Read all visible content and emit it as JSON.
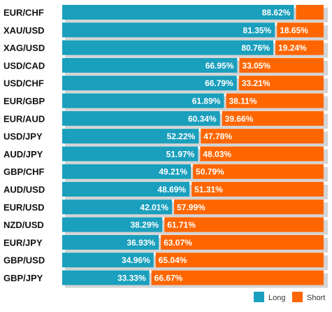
{
  "chart_data": {
    "type": "bar",
    "stacked": true,
    "orientation": "horizontal",
    "categories": [
      "EUR/CHF",
      "XAU/USD",
      "XAG/USD",
      "USD/CAD",
      "USD/CHF",
      "EUR/GBP",
      "EUR/AUD",
      "USD/JPY",
      "AUD/JPY",
      "GBP/CHF",
      "AUD/USD",
      "EUR/USD",
      "NZD/USD",
      "EUR/JPY",
      "GBP/USD",
      "GBP/JPY"
    ],
    "series": [
      {
        "name": "Long",
        "color": "#1a9fbd",
        "values": [
          88.62,
          81.35,
          80.76,
          66.95,
          66.79,
          61.89,
          60.34,
          52.22,
          51.97,
          49.21,
          48.69,
          42.01,
          38.29,
          36.93,
          34.96,
          33.33
        ],
        "labels": [
          "88.62%",
          "81.35%",
          "80.76%",
          "66.95%",
          "66.79%",
          "61.89%",
          "60.34%",
          "52.22%",
          "51.97%",
          "49.21%",
          "48.69%",
          "42.01%",
          "38.29%",
          "36.93%",
          "34.96%",
          "33.33%"
        ]
      },
      {
        "name": "Short",
        "color": "#ff6600",
        "values": [
          11.38,
          18.65,
          19.24,
          33.05,
          33.21,
          38.11,
          39.66,
          47.78,
          48.03,
          50.79,
          51.31,
          57.99,
          61.71,
          63.07,
          65.04,
          66.67
        ],
        "labels": [
          "",
          "18.65%",
          "19.24%",
          "33.05%",
          "33.21%",
          "38.11%",
          "39.66%",
          "47.78%",
          "48.03%",
          "50.79%",
          "51.31%",
          "57.99%",
          "61.71%",
          "63.07%",
          "65.04%",
          "66.67%"
        ]
      }
    ],
    "xlim": [
      0,
      100
    ],
    "unit": "%",
    "grid": false,
    "legend": "bottom-right",
    "title": "",
    "xlabel": "",
    "ylabel": ""
  }
}
